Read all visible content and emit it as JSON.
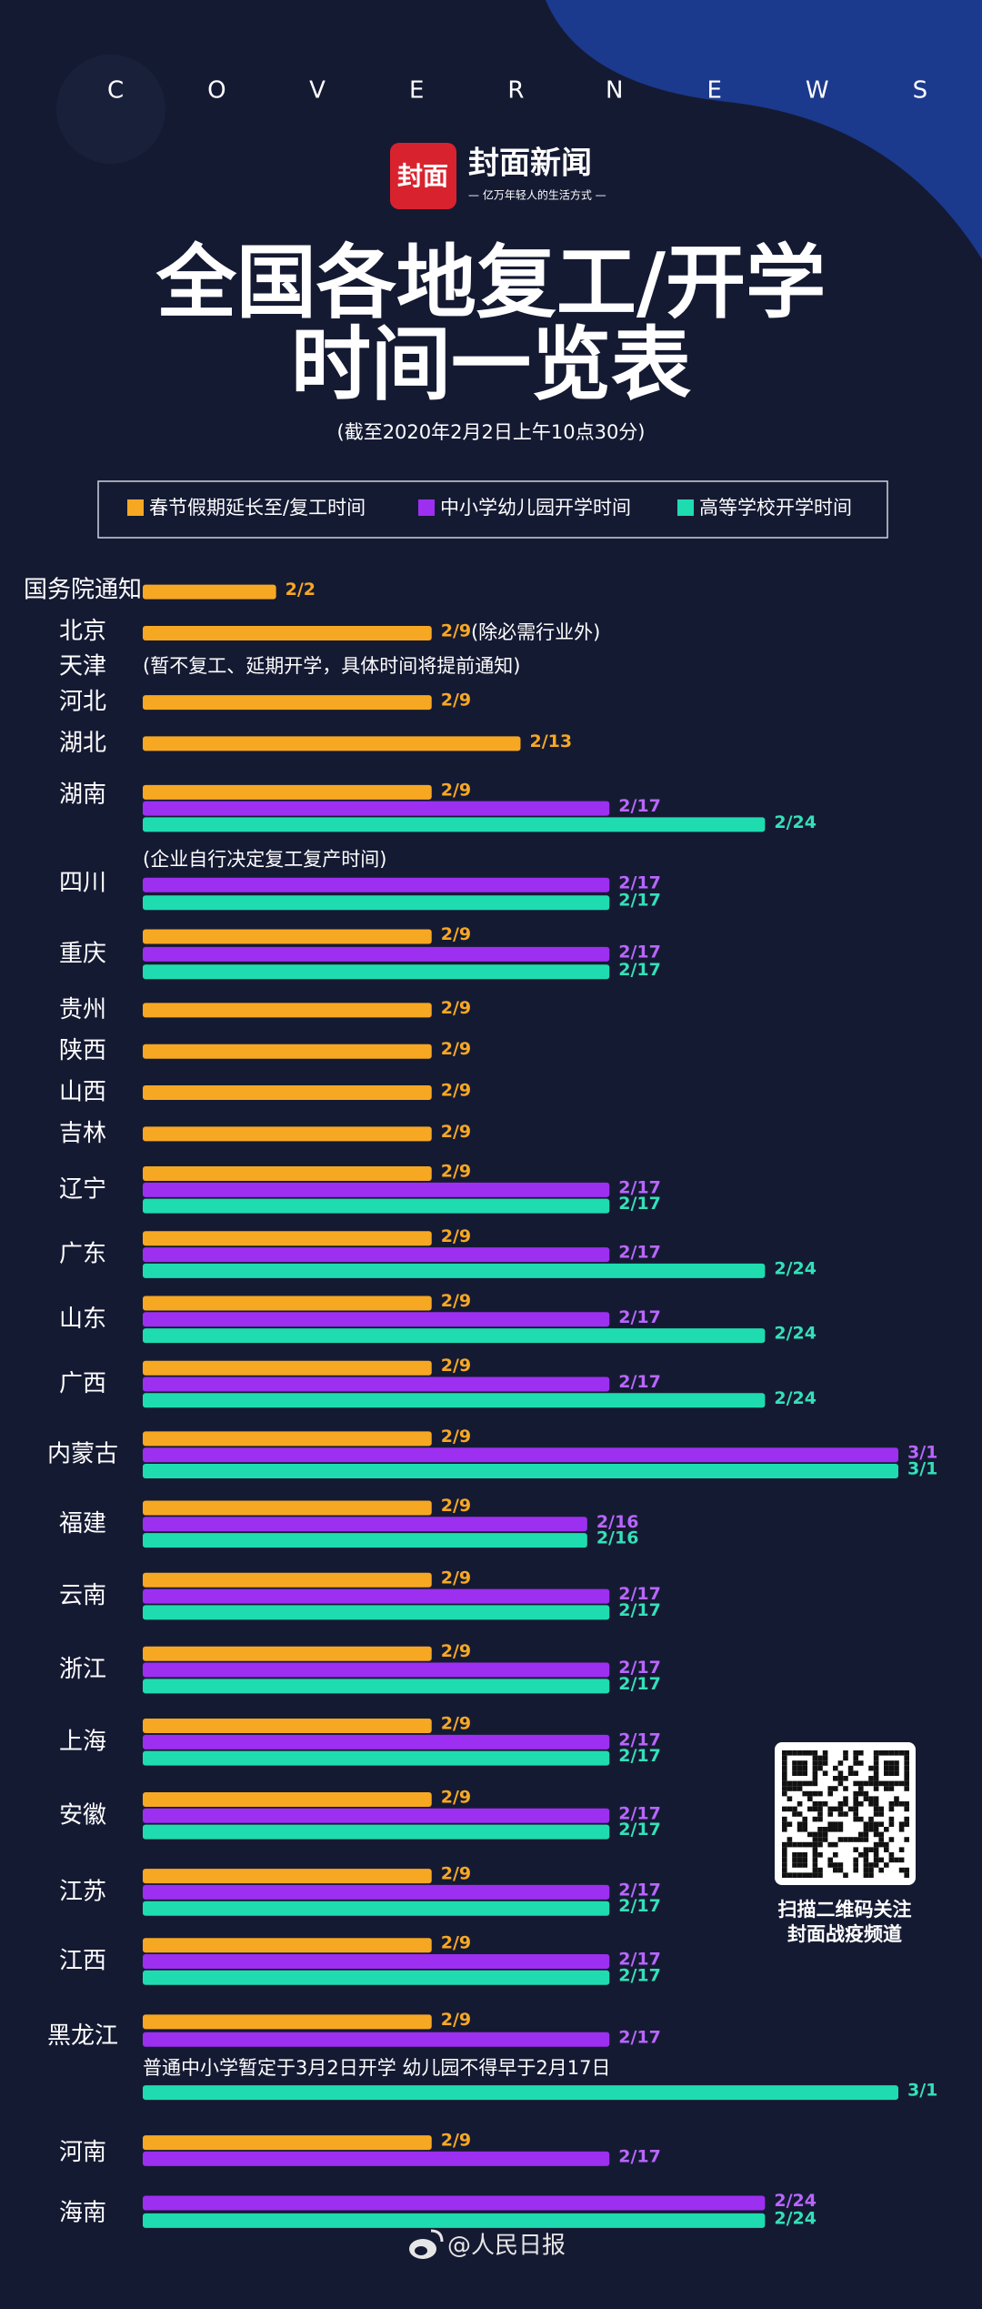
{
  "header": {
    "brand_left": "COVER",
    "brand_right": "NEWS",
    "logo_mark": "封面",
    "logo_name": "封面新闻",
    "logo_tagline": "— 亿万年轻人的生活方式 —"
  },
  "chart_data": {
    "type": "bar",
    "orientation": "horizontal",
    "title": [
      "全国各地复工/开学",
      "时间一览表"
    ],
    "subtitle": "(截至2020年2月2日上午10点30分)",
    "categories": [
      "国务院通知",
      "北京",
      "天津",
      "河北",
      "湖北",
      "湖南",
      "四川",
      "重庆",
      "贵州",
      "陕西",
      "山西",
      "吉林",
      "辽宁",
      "广东",
      "山东",
      "广西",
      "内蒙古",
      "福建",
      "云南",
      "浙江",
      "上海",
      "安徽",
      "江苏",
      "江西",
      "黑龙江",
      "河南",
      "海南"
    ],
    "notes": [
      null,
      "(除必需行业外)",
      "(暂不复工、延期开学，具体时间将提前通知)",
      null,
      null,
      null,
      "(企业自行决定复工复产时间)",
      null,
      null,
      null,
      null,
      null,
      null,
      null,
      null,
      null,
      null,
      null,
      null,
      null,
      null,
      null,
      null,
      null,
      "普通中小学暂定于3月2日开学 幼儿园不得早于2月17日",
      null,
      null
    ],
    "series": [
      {
        "name": "春节假期延长至/复工时间",
        "color": "#f7a823",
        "values": [
          2,
          9,
          null,
          9,
          13,
          9,
          null,
          9,
          9,
          9,
          9,
          9,
          9,
          9,
          9,
          9,
          9,
          9,
          9,
          9,
          9,
          9,
          9,
          9,
          9,
          9,
          null
        ],
        "value_labels": [
          "2/2",
          "2/9",
          null,
          "2/9",
          "2/13",
          "2/9",
          null,
          "2/9",
          "2/9",
          "2/9",
          "2/9",
          "2/9",
          "2/9",
          "2/9",
          "2/9",
          "2/9",
          "2/9",
          "2/9",
          "2/9",
          "2/9",
          "2/9",
          "2/9",
          "2/9",
          "2/9",
          "2/9",
          "2/9",
          null
        ]
      },
      {
        "name": "中小学幼儿园开学时间",
        "color": "#9d2ff0",
        "values": [
          null,
          null,
          null,
          null,
          null,
          17,
          17,
          17,
          null,
          null,
          null,
          null,
          17,
          17,
          17,
          17,
          30,
          16,
          17,
          17,
          17,
          17,
          17,
          17,
          17,
          17,
          24
        ],
        "value_labels": [
          null,
          null,
          null,
          null,
          null,
          "2/17",
          "2/17",
          "2/17",
          null,
          null,
          null,
          null,
          "2/17",
          "2/17",
          "2/17",
          "2/17",
          "3/1",
          "2/16",
          "2/17",
          "2/17",
          "2/17",
          "2/17",
          "2/17",
          "2/17",
          "2/17",
          "2/17",
          "2/24"
        ]
      },
      {
        "name": "高等学校开学时间",
        "color": "#1fdcb0",
        "values": [
          null,
          null,
          null,
          null,
          null,
          24,
          17,
          17,
          null,
          null,
          null,
          null,
          17,
          24,
          24,
          24,
          30,
          16,
          17,
          17,
          17,
          17,
          17,
          17,
          30,
          null,
          24
        ],
        "value_labels": [
          null,
          null,
          null,
          null,
          null,
          "2/24",
          "2/17",
          "2/17",
          null,
          null,
          null,
          null,
          "2/17",
          "2/24",
          "2/24",
          "2/24",
          "3/1",
          "2/16",
          "2/17",
          "2/17",
          "2/17",
          "2/17",
          "2/17",
          "2/17",
          "3/1",
          null,
          "2/24"
        ]
      }
    ],
    "xlim": [
      -4,
      30
    ]
  },
  "qr": {
    "caption": [
      "扫描二维码关注",
      "封面战疫频道"
    ]
  },
  "footer": {
    "source": "@人民日报"
  }
}
